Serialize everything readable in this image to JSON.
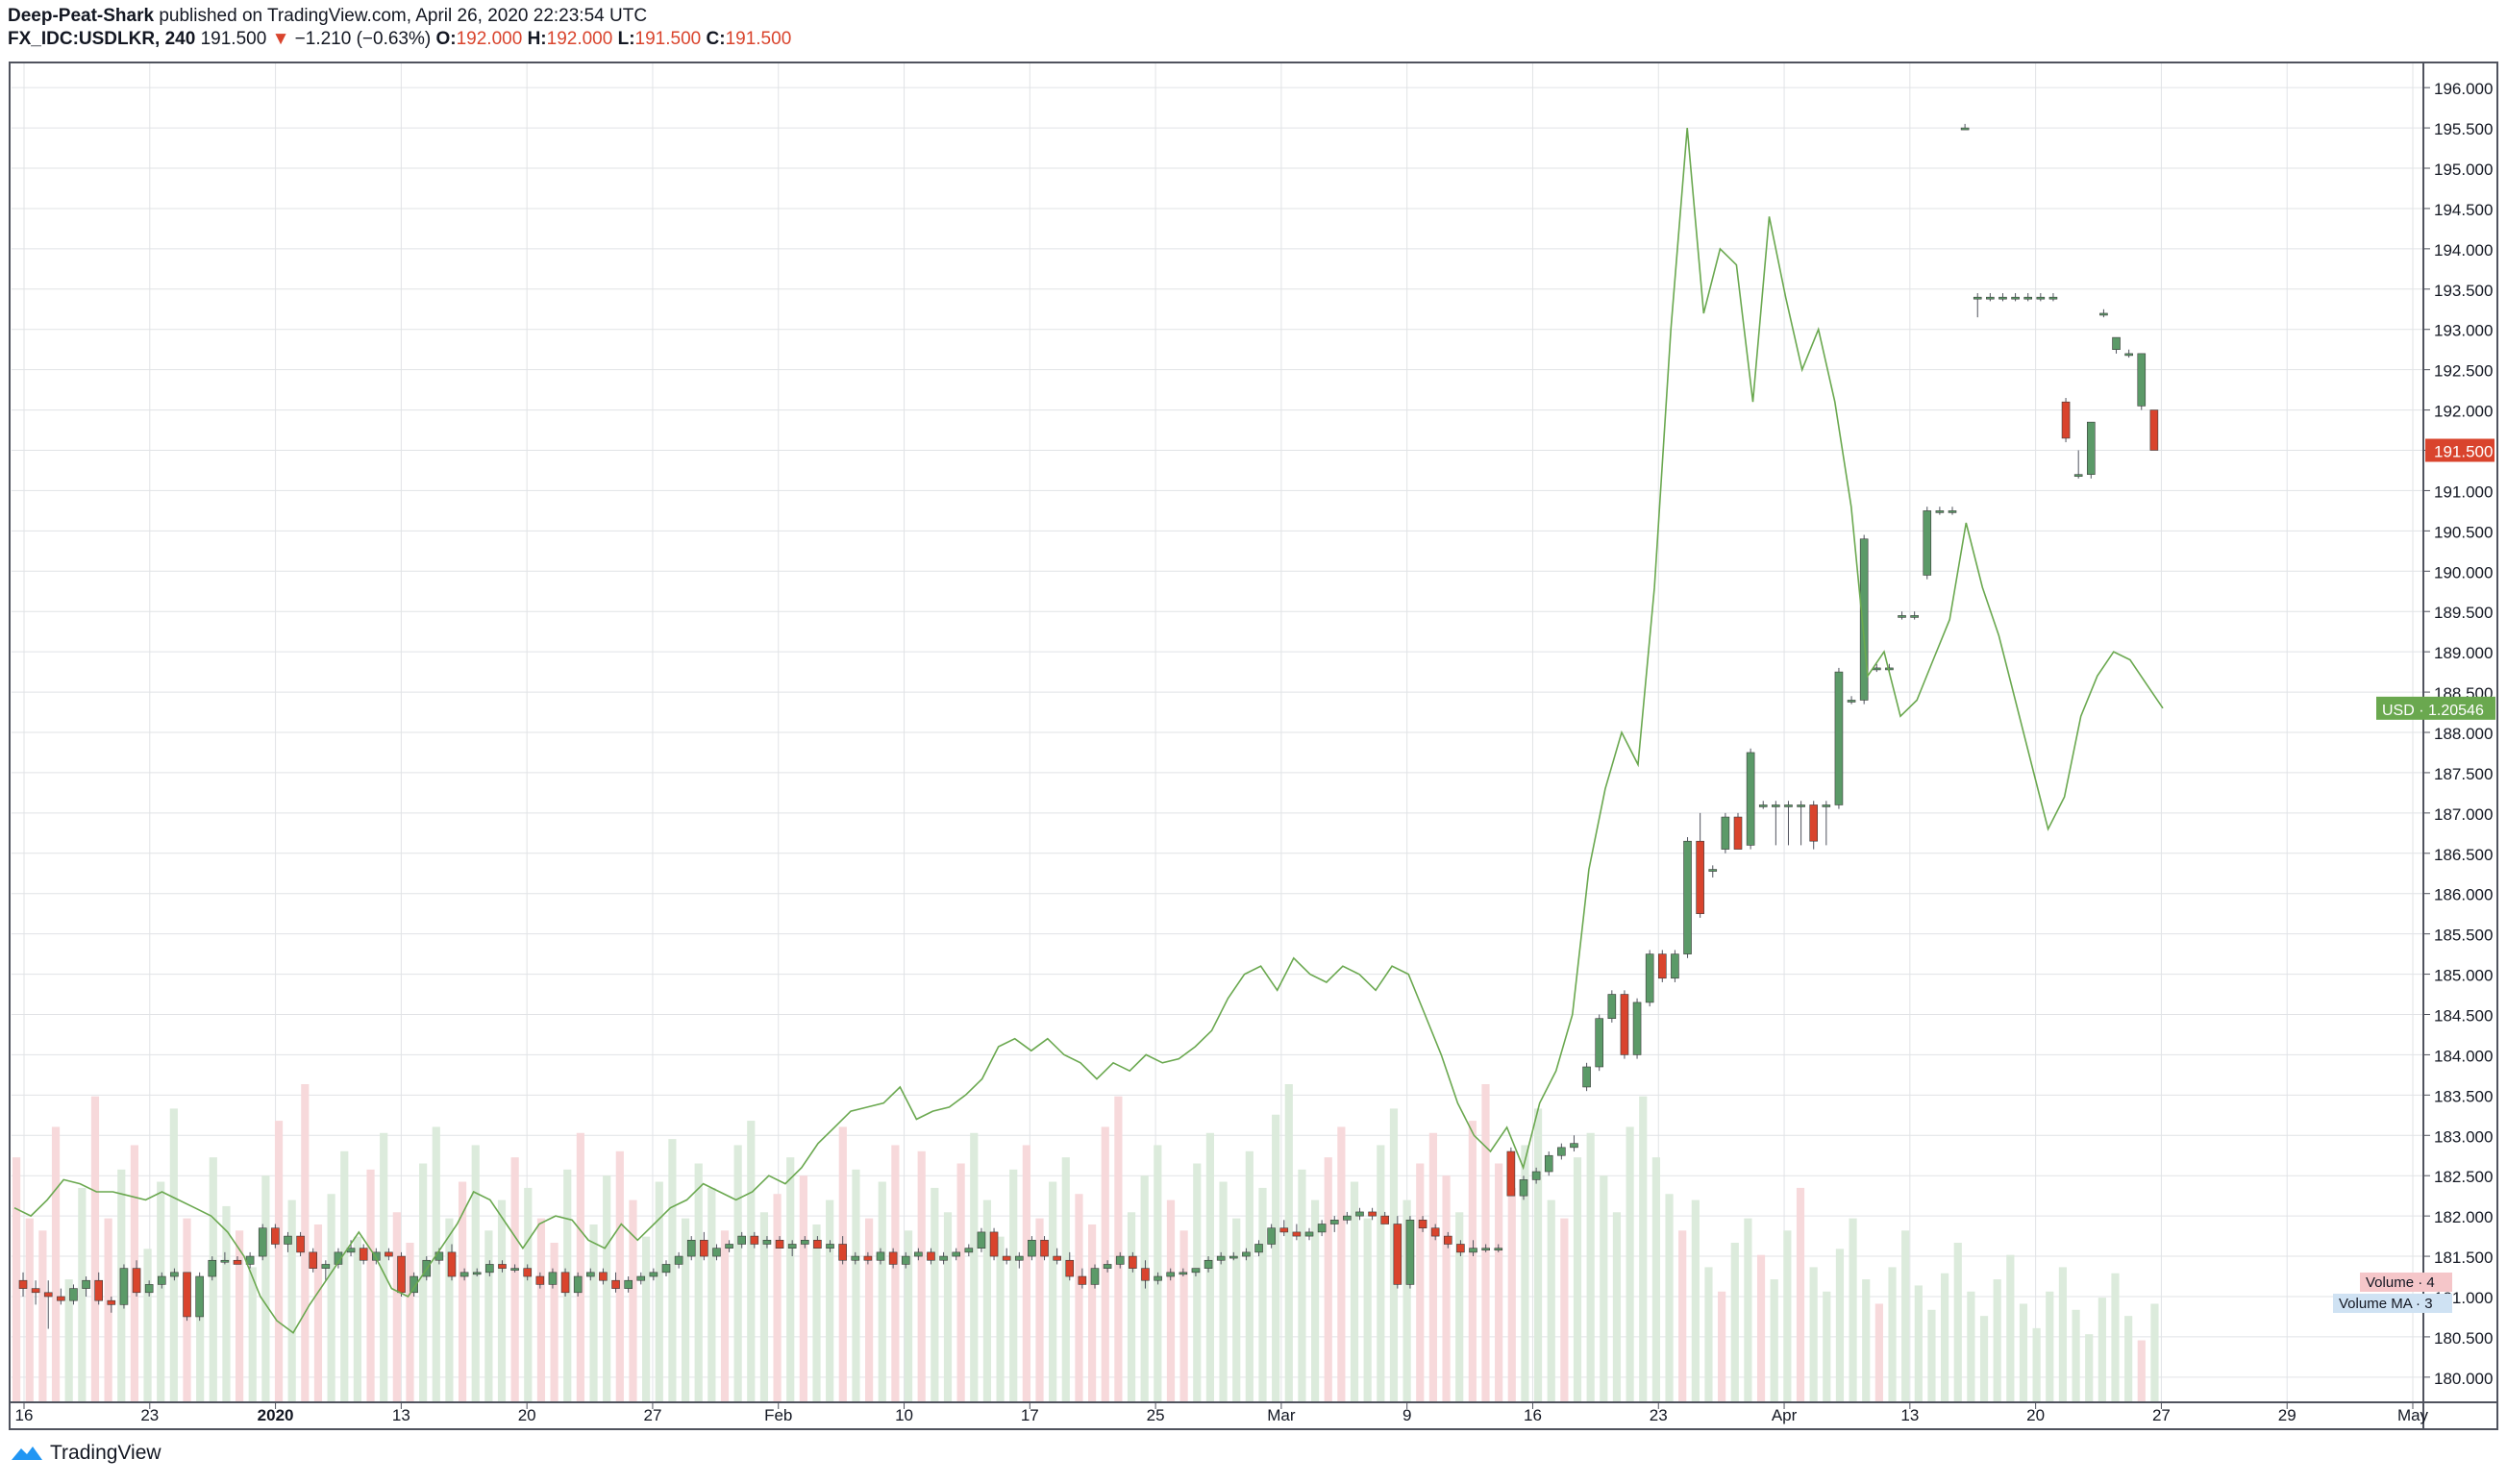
{
  "header": {
    "author": "Deep-Peat-Shark",
    "published": "published on TradingView.com, April 26, 2020 22:23:54 UTC",
    "symbol": "FX_IDC:USDLKR, 240",
    "last": "191.500",
    "change_arrow": "▼",
    "change": "−1.210 (−0.63%)",
    "o_label": "O:",
    "o": "192.000",
    "h_label": "H:",
    "h": "192.000",
    "l_label": "L:",
    "l": "191.500",
    "c_label": "C:",
    "c": "191.500"
  },
  "footer": {
    "brand": "TradingView",
    "logo_icon": "tradingview-logo-icon"
  },
  "colors": {
    "up": "#5b9a68",
    "down": "#d9442d",
    "overlay": "#6aa84f",
    "grid": "#e1e3e6",
    "vol_up": "#dcebdc",
    "vol_down": "#f7d9db"
  },
  "chart_data": {
    "type": "candlestick",
    "symbol": "FX_IDC:USDLKR",
    "interval": "240",
    "y_axis": {
      "ticks": [
        "196.000",
        "195.500",
        "195.000",
        "194.500",
        "194.000",
        "193.500",
        "193.000",
        "192.500",
        "192.000",
        "191.500",
        "191.000",
        "190.500",
        "190.000",
        "189.500",
        "189.000",
        "188.500",
        "188.000",
        "187.500",
        "187.000",
        "186.500",
        "186.000",
        "185.500",
        "185.000",
        "184.500",
        "184.000",
        "183.500",
        "183.000",
        "182.500",
        "182.000",
        "181.500",
        "181.000",
        "180.500",
        "180.000"
      ],
      "range": [
        179.7,
        196.3
      ]
    },
    "x_axis": {
      "ticks": [
        "16",
        "23",
        "2020",
        "13",
        "20",
        "27",
        "Feb",
        "10",
        "17",
        "25",
        "Mar",
        "9",
        "16",
        "23",
        "Apr",
        "13",
        "20",
        "27",
        "29",
        "May"
      ]
    },
    "price_label": "191.500",
    "overlay_label": "USD · 1.20546",
    "legend": [
      {
        "name": "Volume",
        "value": "4"
      },
      {
        "name": "Volume MA",
        "value": "3"
      }
    ],
    "candles": [
      [
        181.2,
        181.3,
        181.0,
        181.1
      ],
      [
        181.1,
        181.2,
        180.9,
        181.05
      ],
      [
        181.05,
        181.2,
        180.6,
        181.0
      ],
      [
        181.0,
        181.1,
        180.9,
        180.95
      ],
      [
        180.95,
        181.15,
        180.9,
        181.1
      ],
      [
        181.1,
        181.25,
        181.0,
        181.2
      ],
      [
        181.2,
        181.3,
        180.9,
        180.95
      ],
      [
        180.95,
        181.0,
        180.8,
        180.9
      ],
      [
        180.9,
        181.4,
        180.85,
        181.35
      ],
      [
        181.35,
        181.45,
        181.0,
        181.05
      ],
      [
        181.05,
        181.2,
        181.0,
        181.15
      ],
      [
        181.15,
        181.3,
        181.1,
        181.25
      ],
      [
        181.25,
        181.35,
        181.2,
        181.3
      ],
      [
        181.3,
        181.3,
        180.7,
        180.75
      ],
      [
        180.75,
        181.3,
        180.7,
        181.25
      ],
      [
        181.25,
        181.5,
        181.2,
        181.45
      ],
      [
        181.45,
        181.55,
        181.4,
        181.45
      ],
      [
        181.45,
        181.5,
        181.4,
        181.4
      ],
      [
        181.4,
        181.55,
        181.35,
        181.5
      ],
      [
        181.5,
        181.9,
        181.45,
        181.85
      ],
      [
        181.85,
        181.9,
        181.6,
        181.65
      ],
      [
        181.65,
        181.8,
        181.55,
        181.75
      ],
      [
        181.75,
        181.8,
        181.5,
        181.55
      ],
      [
        181.55,
        181.6,
        181.3,
        181.35
      ],
      [
        181.35,
        181.45,
        181.2,
        181.4
      ],
      [
        181.4,
        181.6,
        181.35,
        181.55
      ],
      [
        181.55,
        181.7,
        181.5,
        181.6
      ],
      [
        181.6,
        181.65,
        181.4,
        181.45
      ],
      [
        181.45,
        181.6,
        181.4,
        181.55
      ],
      [
        181.55,
        181.6,
        181.45,
        181.5
      ],
      [
        181.5,
        181.55,
        181.0,
        181.05
      ],
      [
        181.05,
        181.3,
        181.0,
        181.25
      ],
      [
        181.25,
        181.5,
        181.2,
        181.45
      ],
      [
        181.45,
        181.6,
        181.4,
        181.55
      ],
      [
        181.55,
        181.65,
        181.2,
        181.25
      ],
      [
        181.25,
        181.35,
        181.2,
        181.3
      ],
      [
        181.3,
        181.35,
        181.25,
        181.3
      ],
      [
        181.3,
        181.45,
        181.25,
        181.4
      ],
      [
        181.4,
        181.45,
        181.3,
        181.35
      ],
      [
        181.35,
        181.4,
        181.3,
        181.35
      ],
      [
        181.35,
        181.4,
        181.2,
        181.25
      ],
      [
        181.25,
        181.3,
        181.1,
        181.15
      ],
      [
        181.15,
        181.35,
        181.1,
        181.3
      ],
      [
        181.3,
        181.35,
        181.0,
        181.05
      ],
      [
        181.05,
        181.3,
        181.0,
        181.25
      ],
      [
        181.25,
        181.35,
        181.2,
        181.3
      ],
      [
        181.3,
        181.35,
        181.15,
        181.2
      ],
      [
        181.2,
        181.3,
        181.05,
        181.1
      ],
      [
        181.1,
        181.25,
        181.05,
        181.2
      ],
      [
        181.2,
        181.3,
        181.15,
        181.25
      ],
      [
        181.25,
        181.35,
        181.2,
        181.3
      ],
      [
        181.3,
        181.45,
        181.25,
        181.4
      ],
      [
        181.4,
        181.55,
        181.35,
        181.5
      ],
      [
        181.5,
        181.75,
        181.45,
        181.7
      ],
      [
        181.7,
        181.8,
        181.45,
        181.5
      ],
      [
        181.5,
        181.65,
        181.45,
        181.6
      ],
      [
        181.6,
        181.7,
        181.55,
        181.65
      ],
      [
        181.65,
        181.8,
        181.6,
        181.75
      ],
      [
        181.75,
        181.8,
        181.6,
        181.65
      ],
      [
        181.65,
        181.75,
        181.6,
        181.7
      ],
      [
        181.7,
        181.75,
        181.6,
        181.6
      ],
      [
        181.6,
        181.7,
        181.5,
        181.65
      ],
      [
        181.65,
        181.75,
        181.6,
        181.7
      ],
      [
        181.7,
        181.75,
        181.6,
        181.6
      ],
      [
        181.6,
        181.7,
        181.55,
        181.65
      ],
      [
        181.65,
        181.75,
        181.4,
        181.45
      ],
      [
        181.45,
        181.55,
        181.4,
        181.5
      ],
      [
        181.5,
        181.55,
        181.4,
        181.45
      ],
      [
        181.45,
        181.6,
        181.4,
        181.55
      ],
      [
        181.55,
        181.6,
        181.35,
        181.4
      ],
      [
        181.4,
        181.55,
        181.35,
        181.5
      ],
      [
        181.5,
        181.6,
        181.45,
        181.55
      ],
      [
        181.55,
        181.6,
        181.4,
        181.45
      ],
      [
        181.45,
        181.55,
        181.4,
        181.5
      ],
      [
        181.5,
        181.6,
        181.45,
        181.55
      ],
      [
        181.55,
        181.65,
        181.5,
        181.6
      ],
      [
        181.6,
        181.85,
        181.55,
        181.8
      ],
      [
        181.8,
        181.85,
        181.45,
        181.5
      ],
      [
        181.5,
        181.6,
        181.4,
        181.45
      ],
      [
        181.45,
        181.55,
        181.35,
        181.5
      ],
      [
        181.5,
        181.75,
        181.45,
        181.7
      ],
      [
        181.7,
        181.75,
        181.45,
        181.5
      ],
      [
        181.5,
        181.6,
        181.4,
        181.45
      ],
      [
        181.45,
        181.55,
        181.2,
        181.25
      ],
      [
        181.25,
        181.35,
        181.1,
        181.15
      ],
      [
        181.15,
        181.4,
        181.1,
        181.35
      ],
      [
        181.35,
        181.45,
        181.3,
        181.4
      ],
      [
        181.4,
        181.55,
        181.35,
        181.5
      ],
      [
        181.5,
        181.55,
        181.3,
        181.35
      ],
      [
        181.35,
        181.45,
        181.1,
        181.2
      ],
      [
        181.2,
        181.3,
        181.15,
        181.25
      ],
      [
        181.25,
        181.35,
        181.2,
        181.3
      ],
      [
        181.3,
        181.35,
        181.25,
        181.3
      ],
      [
        181.3,
        181.35,
        181.25,
        181.35
      ],
      [
        181.35,
        181.5,
        181.3,
        181.45
      ],
      [
        181.45,
        181.55,
        181.4,
        181.5
      ],
      [
        181.5,
        181.55,
        181.45,
        181.5
      ],
      [
        181.5,
        181.6,
        181.45,
        181.55
      ],
      [
        181.55,
        181.7,
        181.5,
        181.65
      ],
      [
        181.65,
        181.9,
        181.6,
        181.85
      ],
      [
        181.85,
        181.95,
        181.75,
        181.8
      ],
      [
        181.8,
        181.9,
        181.7,
        181.75
      ],
      [
        181.75,
        181.85,
        181.7,
        181.8
      ],
      [
        181.8,
        181.95,
        181.75,
        181.9
      ],
      [
        181.9,
        182.0,
        181.8,
        181.95
      ],
      [
        181.95,
        182.05,
        181.9,
        182.0
      ],
      [
        182.0,
        182.1,
        181.95,
        182.05
      ],
      [
        182.05,
        182.1,
        181.95,
        182.0
      ],
      [
        182.0,
        182.05,
        181.9,
        181.9
      ],
      [
        181.9,
        182.0,
        181.1,
        181.15
      ],
      [
        181.15,
        182.0,
        181.1,
        181.95
      ],
      [
        181.95,
        182.0,
        181.8,
        181.85
      ],
      [
        181.85,
        181.9,
        181.7,
        181.75
      ],
      [
        181.75,
        181.8,
        181.6,
        181.65
      ],
      [
        181.65,
        181.7,
        181.5,
        181.55
      ],
      [
        181.55,
        181.7,
        181.5,
        181.6
      ],
      [
        181.6,
        181.65,
        181.55,
        181.6
      ],
      [
        181.6,
        181.65,
        181.55,
        181.6
      ],
      [
        182.8,
        182.85,
        182.25,
        182.25
      ],
      [
        182.25,
        182.5,
        182.2,
        182.45
      ],
      [
        182.45,
        182.6,
        182.4,
        182.55
      ],
      [
        182.55,
        182.8,
        182.5,
        182.75
      ],
      [
        182.75,
        182.9,
        182.7,
        182.85
      ],
      [
        182.85,
        183.0,
        182.8,
        182.9
      ],
      [
        183.6,
        183.9,
        183.55,
        183.85
      ],
      [
        183.85,
        184.5,
        183.8,
        184.45
      ],
      [
        184.45,
        184.8,
        184.4,
        184.75
      ],
      [
        184.75,
        184.8,
        183.95,
        184.0
      ],
      [
        184.0,
        184.7,
        183.95,
        184.65
      ],
      [
        184.65,
        185.3,
        184.6,
        185.25
      ],
      [
        185.25,
        185.3,
        184.9,
        184.95
      ],
      [
        184.95,
        185.3,
        184.9,
        185.25
      ],
      [
        185.25,
        186.7,
        185.2,
        186.65
      ],
      [
        186.65,
        187.0,
        185.7,
        185.75
      ],
      [
        186.3,
        186.35,
        186.2,
        186.3
      ],
      [
        186.55,
        187.0,
        186.5,
        186.95
      ],
      [
        186.95,
        187.0,
        186.55,
        186.55
      ],
      [
        186.6,
        187.8,
        186.55,
        187.75
      ],
      [
        187.1,
        187.15,
        187.05,
        187.1
      ],
      [
        187.1,
        187.15,
        186.6,
        187.1
      ],
      [
        187.1,
        187.15,
        186.6,
        187.1
      ],
      [
        187.1,
        187.15,
        186.6,
        187.1
      ],
      [
        187.1,
        187.15,
        186.55,
        186.65
      ],
      [
        187.1,
        187.15,
        186.6,
        187.1
      ],
      [
        187.1,
        188.8,
        187.05,
        188.75
      ],
      [
        188.4,
        188.45,
        188.35,
        188.4
      ],
      [
        188.4,
        190.45,
        188.35,
        190.4
      ],
      [
        188.8,
        188.85,
        188.75,
        188.8
      ],
      [
        188.8,
        188.85,
        188.75,
        188.8
      ],
      [
        189.45,
        189.5,
        189.4,
        189.45
      ],
      [
        189.45,
        189.5,
        189.4,
        189.45
      ],
      [
        189.95,
        190.8,
        189.9,
        190.75
      ],
      [
        190.75,
        190.8,
        190.7,
        190.75
      ],
      [
        190.75,
        190.8,
        190.7,
        190.75
      ],
      [
        195.5,
        195.55,
        195.5,
        195.5
      ],
      [
        193.4,
        193.45,
        193.15,
        193.4
      ],
      [
        193.4,
        193.45,
        193.35,
        193.4
      ],
      [
        193.4,
        193.45,
        193.35,
        193.4
      ],
      [
        193.4,
        193.45,
        193.35,
        193.4
      ],
      [
        193.4,
        193.45,
        193.35,
        193.4
      ],
      [
        193.4,
        193.45,
        193.35,
        193.4
      ],
      [
        193.4,
        193.45,
        193.35,
        193.4
      ],
      [
        192.1,
        192.15,
        191.6,
        191.65
      ],
      [
        191.2,
        191.5,
        191.15,
        191.2
      ],
      [
        191.2,
        191.85,
        191.15,
        191.85
      ],
      [
        193.2,
        193.25,
        193.15,
        193.2
      ],
      [
        192.75,
        192.9,
        192.7,
        192.9
      ],
      [
        192.7,
        192.75,
        192.65,
        192.7
      ],
      [
        192.05,
        192.7,
        192.0,
        192.7
      ],
      [
        192.0,
        192.0,
        191.5,
        191.5
      ]
    ],
    "volumes": [
      40,
      30,
      28,
      45,
      20,
      35,
      50,
      30,
      38,
      42,
      25,
      36,
      48,
      30,
      20,
      40,
      32,
      28,
      22,
      37,
      46,
      33,
      52,
      29,
      34,
      41,
      27,
      38,
      44,
      31,
      26,
      39,
      45,
      30,
      36,
      42,
      28,
      33,
      40,
      35,
      30,
      26,
      38,
      44,
      29,
      37,
      41,
      33,
      27,
      36,
      43,
      30,
      39,
      35,
      28,
      42,
      46,
      31,
      34,
      40,
      37,
      29,
      33,
      45,
      38,
      30,
      36,
      42,
      28,
      41,
      35,
      31,
      39,
      44,
      33,
      27,
      38,
      42,
      30,
      36,
      40,
      34,
      29,
      45,
      50,
      31,
      37,
      42,
      33,
      28,
      39,
      44,
      36,
      30,
      41,
      35,
      47,
      52,
      38,
      33,
      40,
      45,
      36,
      30,
      42,
      48,
      33,
      39,
      44,
      37,
      31,
      46,
      52,
      39,
      35,
      42,
      48,
      33,
      30,
      40,
      44,
      37,
      31,
      45,
      50,
      40,
      34,
      28,
      33,
      22,
      18,
      26,
      30,
      24,
      20,
      28,
      35,
      22,
      18,
      25,
      30,
      20,
      16,
      22,
      28,
      19,
      15,
      21,
      26,
      18,
      14,
      20,
      24,
      16,
      12,
      18,
      22,
      15,
      11,
      17,
      21,
      14,
      10,
      16
    ],
    "overlay": [
      182.1,
      182.0,
      182.2,
      182.45,
      182.4,
      182.3,
      182.3,
      182.25,
      182.2,
      182.3,
      182.2,
      182.1,
      182.0,
      181.8,
      181.5,
      181.0,
      180.7,
      180.55,
      180.9,
      181.2,
      181.5,
      181.8,
      181.5,
      181.1,
      181.0,
      181.3,
      181.6,
      181.9,
      182.3,
      182.2,
      181.9,
      181.6,
      181.9,
      182.0,
      181.95,
      181.7,
      181.6,
      181.9,
      181.7,
      181.9,
      182.1,
      182.2,
      182.4,
      182.3,
      182.2,
      182.3,
      182.5,
      182.4,
      182.6,
      182.9,
      183.1,
      183.3,
      183.35,
      183.4,
      183.6,
      183.2,
      183.3,
      183.35,
      183.5,
      183.7,
      184.1,
      184.2,
      184.05,
      184.2,
      184.0,
      183.9,
      183.7,
      183.9,
      183.8,
      184.0,
      183.9,
      183.95,
      184.1,
      184.3,
      184.7,
      185.0,
      185.1,
      184.8,
      185.2,
      185.0,
      184.9,
      185.1,
      185.0,
      184.8,
      185.1,
      185.0,
      184.5,
      184.0,
      183.4,
      183.0,
      182.8,
      183.1,
      182.6,
      183.4,
      183.8,
      184.5,
      186.3,
      187.3,
      188.0,
      187.6,
      189.8,
      193.0,
      195.5,
      193.2,
      194.0,
      193.8,
      192.1,
      194.4,
      193.4,
      192.5,
      193.0,
      192.1,
      190.8,
      188.7,
      189.0,
      188.2,
      188.4,
      188.9,
      189.4,
      190.6,
      189.8,
      189.2,
      188.4,
      187.6,
      186.8,
      187.2,
      188.2,
      188.7,
      189.0,
      188.9,
      188.6,
      188.3
    ]
  }
}
